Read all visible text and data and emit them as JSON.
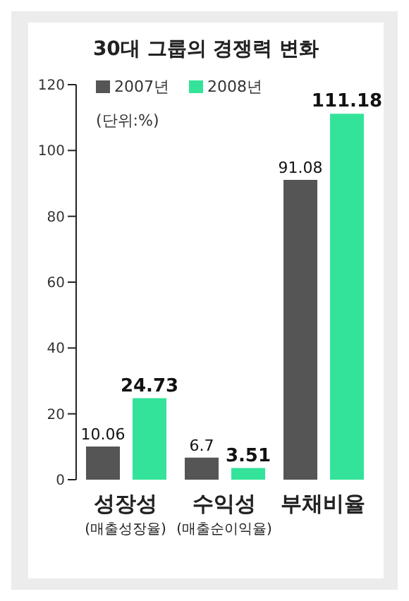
{
  "chart_data": {
    "type": "bar",
    "title": "30대 그룹의 경쟁력 변화",
    "categories": [
      "성장성\n(매출성장율)",
      "수익성\n(매출순이익율)",
      "부채비율"
    ],
    "series": [
      {
        "name": "2007년",
        "color": "#555555",
        "values": [
          10.06,
          6.7,
          91.08
        ]
      },
      {
        "name": "2008년",
        "color": "#33e39a",
        "values": [
          24.73,
          3.51,
          111.18
        ]
      }
    ],
    "ylim": [
      0,
      120
    ],
    "yticks": [
      0,
      20,
      40,
      60,
      80,
      100,
      120
    ],
    "grid": false,
    "legend": "top left",
    "data_labels": true,
    "annotations": [
      "(단위:%)"
    ]
  }
}
